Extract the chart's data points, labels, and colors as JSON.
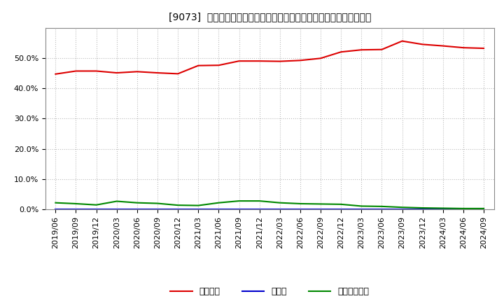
{
  "title": "[9073]  自己資本、のれん、繰延税金資産の総資産に対する比率の推移",
  "x_labels": [
    "2019/06",
    "2019/09",
    "2019/12",
    "2020/03",
    "2020/06",
    "2020/09",
    "2020/12",
    "2021/03",
    "2021/06",
    "2021/09",
    "2021/12",
    "2022/03",
    "2022/06",
    "2022/09",
    "2022/12",
    "2023/03",
    "2023/06",
    "2023/09",
    "2023/12",
    "2024/03",
    "2024/06",
    "2024/09"
  ],
  "jikoshihon": [
    0.447,
    0.457,
    0.457,
    0.451,
    0.455,
    0.451,
    0.448,
    0.475,
    0.476,
    0.49,
    0.49,
    0.489,
    0.492,
    0.499,
    0.52,
    0.527,
    0.528,
    0.556,
    0.545,
    0.54,
    0.534,
    0.532
  ],
  "noren": [
    0.0,
    0.0,
    0.0,
    0.0,
    0.0,
    0.0,
    0.0,
    0.0,
    0.0,
    0.0,
    0.0,
    0.0,
    0.0,
    0.0,
    0.0,
    0.0,
    0.0,
    0.0,
    0.0,
    0.0,
    0.0,
    0.0
  ],
  "kurinobe": [
    0.022,
    0.019,
    0.015,
    0.027,
    0.022,
    0.02,
    0.014,
    0.013,
    0.022,
    0.028,
    0.028,
    0.022,
    0.019,
    0.018,
    0.017,
    0.011,
    0.01,
    0.007,
    0.005,
    0.004,
    0.003,
    0.003
  ],
  "jikoshihon_color": "#dd0000",
  "noren_color": "#0000cc",
  "kurinobe_color": "#008800",
  "legend_labels": [
    "自己資本",
    "のれん",
    "繰延税金資産"
  ],
  "ylim": [
    0.0,
    0.6
  ],
  "yticks": [
    0.0,
    0.1,
    0.2,
    0.3,
    0.4,
    0.5
  ],
  "background_color": "#ffffff",
  "grid_color": "#bbbbbb",
  "title_fontsize": 12,
  "axis_fontsize": 8
}
